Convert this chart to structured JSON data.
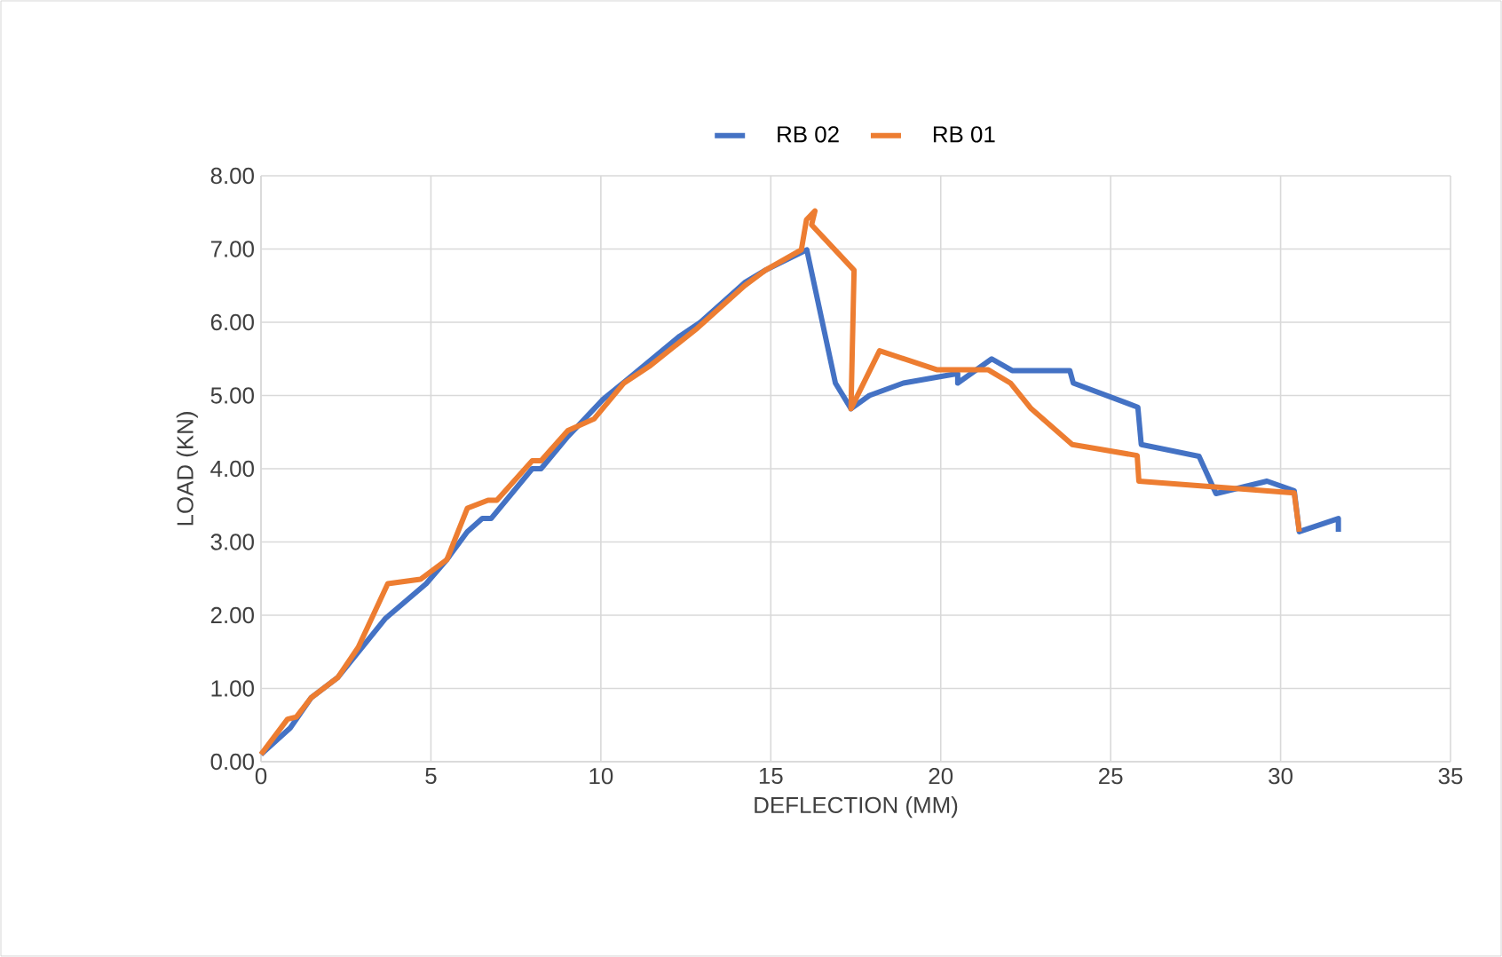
{
  "chart_data": {
    "type": "line",
    "xlabel": "DEFLECTION (MM)",
    "ylabel": "LOAD (KN)",
    "xlim": [
      0,
      35
    ],
    "xticks": [
      0,
      5,
      10,
      15,
      20,
      25,
      30,
      35
    ],
    "ylim": [
      0,
      8
    ],
    "yticks": [
      {
        "value": 0,
        "label": "0.00"
      },
      {
        "value": 1,
        "label": "1.00"
      },
      {
        "value": 2,
        "label": "2.00"
      },
      {
        "value": 3,
        "label": "3.00"
      },
      {
        "value": 4,
        "label": "4.00"
      },
      {
        "value": 5,
        "label": "5.00"
      },
      {
        "value": 6,
        "label": "6.00"
      },
      {
        "value": 7,
        "label": "7.00"
      },
      {
        "value": 8,
        "label": "8.00"
      }
    ],
    "grid": true,
    "legend": "top",
    "marker": "none",
    "line_style": "solid",
    "series": [
      {
        "name": "RB 02",
        "color": "#4472c4",
        "x": [
          0,
          0.86,
          1.47,
          2.26,
          3.65,
          4.86,
          5.47,
          6.07,
          6.51,
          6.77,
          7.98,
          8.24,
          9.03,
          10.07,
          10.76,
          12.32,
          12.93,
          14.23,
          14.84,
          16.06,
          16.9,
          17.36,
          17.9,
          18.9,
          20.5,
          20.5,
          21.5,
          22.1,
          23.8,
          23.9,
          25.8,
          25.9,
          27.6,
          28.1,
          29.6,
          30.4,
          30.55,
          31.7,
          31.7
        ],
        "values": [
          0.1,
          0.46,
          0.87,
          1.15,
          1.95,
          2.43,
          2.76,
          3.14,
          3.32,
          3.32,
          4.0,
          4.0,
          4.44,
          4.95,
          5.21,
          5.81,
          6.0,
          6.54,
          6.71,
          6.99,
          5.17,
          4.82,
          5.0,
          5.17,
          5.3,
          5.17,
          5.5,
          5.34,
          5.34,
          5.17,
          4.84,
          4.33,
          4.17,
          3.66,
          3.83,
          3.7,
          3.14,
          3.32,
          3.14
        ]
      },
      {
        "name": "RB 01",
        "color": "#ed7d31",
        "x": [
          0,
          0.78,
          1.04,
          1.47,
          2.26,
          2.86,
          3.73,
          4.69,
          5.47,
          6.07,
          6.68,
          6.94,
          7.98,
          8.24,
          9.03,
          9.8,
          10.68,
          11.46,
          12.84,
          14.23,
          14.84,
          15.9,
          16.05,
          16.3,
          16.2,
          17.45,
          17.36,
          18.2,
          19.9,
          21.4,
          22.05,
          22.66,
          23.87,
          25.78,
          25.83,
          30.4,
          30.55
        ],
        "values": [
          0.1,
          0.58,
          0.61,
          0.87,
          1.15,
          1.56,
          2.43,
          2.49,
          2.76,
          3.46,
          3.57,
          3.57,
          4.11,
          4.11,
          4.52,
          4.68,
          5.17,
          5.41,
          5.92,
          6.5,
          6.71,
          6.99,
          7.4,
          7.52,
          7.33,
          6.71,
          4.82,
          5.61,
          5.35,
          5.35,
          5.17,
          4.82,
          4.33,
          4.18,
          3.83,
          3.67,
          3.14
        ]
      }
    ]
  }
}
